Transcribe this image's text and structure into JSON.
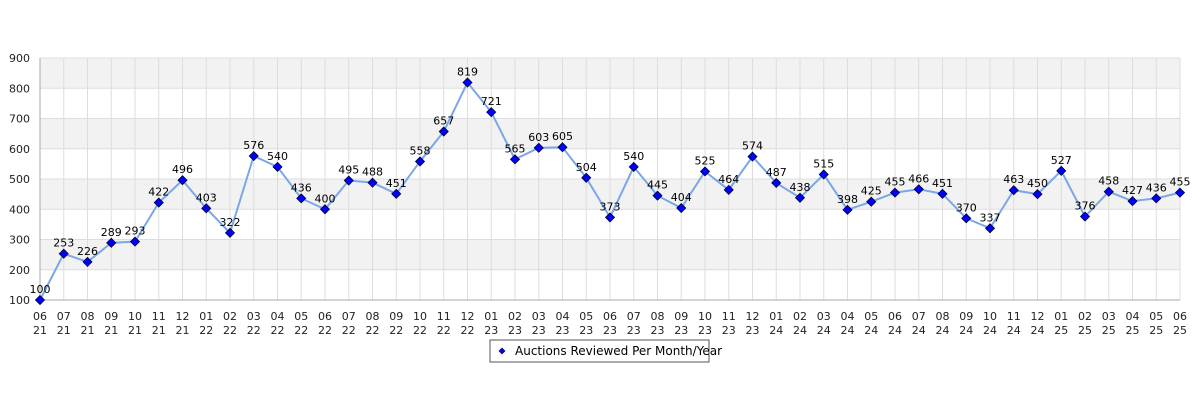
{
  "chart_data": {
    "type": "line",
    "categories": [
      "06\n21",
      "07\n21",
      "08\n21",
      "09\n21",
      "10\n21",
      "11\n21",
      "12\n21",
      "01\n22",
      "02\n22",
      "03\n22",
      "04\n22",
      "05\n22",
      "06\n22",
      "07\n22",
      "08\n22",
      "09\n22",
      "10\n22",
      "11\n22",
      "12\n22",
      "01\n23",
      "02\n23",
      "03\n23",
      "04\n23",
      "05\n23",
      "06\n23",
      "07\n23",
      "08\n23",
      "09\n23",
      "10\n23",
      "11\n23",
      "12\n23",
      "01\n24",
      "02\n24",
      "03\n24",
      "04\n24",
      "05\n24",
      "06\n24",
      "07\n24",
      "08\n24",
      "09\n24",
      "10\n24",
      "11\n24",
      "12\n24",
      "01\n25",
      "02\n25",
      "03\n25",
      "04\n25",
      "05\n25",
      "06\n25"
    ],
    "series": [
      {
        "name": "Auctions Reviewed Per Month/Year",
        "values": [
          100,
          253,
          226,
          289,
          293,
          422,
          496,
          403,
          322,
          576,
          540,
          436,
          400,
          495,
          488,
          451,
          558,
          657,
          819,
          721,
          565,
          603,
          605,
          504,
          373,
          540,
          445,
          404,
          525,
          464,
          574,
          487,
          438,
          515,
          398,
          425,
          455,
          466,
          451,
          370,
          337,
          463,
          450,
          527,
          376,
          458,
          427,
          436,
          455
        ]
      }
    ],
    "ylim": [
      100,
      900
    ],
    "yticks": [
      100,
      200,
      300,
      400,
      500,
      600,
      700,
      800,
      900
    ],
    "grid": true,
    "banded_background": true,
    "legend_position": "bottom-center",
    "colors": {
      "line": "#7ba7e6",
      "marker": "#0000ff",
      "marker_edge": "#000033",
      "band": "#f2f2f2",
      "grid": "#dddddd"
    }
  }
}
